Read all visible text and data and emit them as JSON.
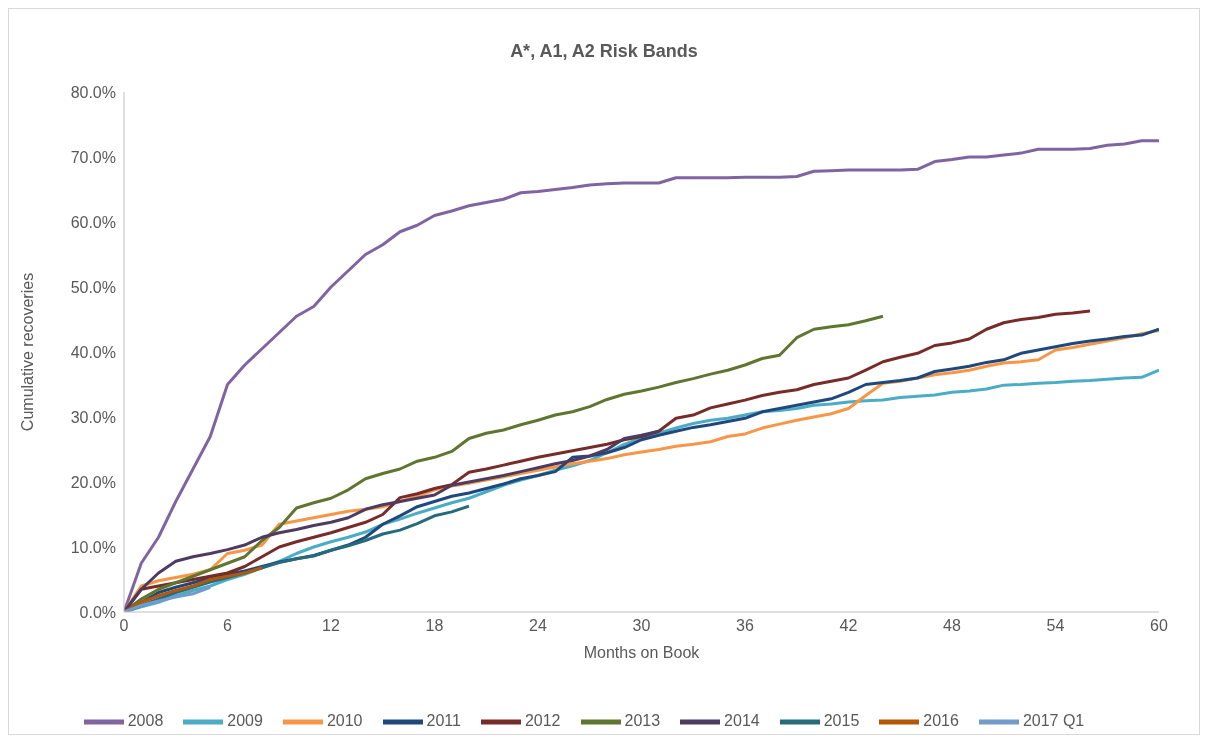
{
  "chart_data": {
    "type": "line",
    "title": "A*, A1, A2 Risk Bands",
    "xlabel": "Months on Book",
    "ylabel": "Cumulative recoveries",
    "x": [
      0,
      1,
      2,
      3,
      4,
      5,
      6,
      7,
      8,
      9,
      10,
      11,
      12,
      13,
      14,
      15,
      16,
      17,
      18,
      19,
      20,
      21,
      22,
      23,
      24,
      25,
      26,
      27,
      28,
      29,
      30,
      31,
      32,
      33,
      34,
      35,
      36,
      37,
      38,
      39,
      40,
      41,
      42,
      43,
      44,
      45,
      46,
      47,
      48,
      49,
      50,
      51,
      52,
      53,
      54,
      55,
      56,
      57,
      58,
      59,
      60
    ],
    "xlim": [
      0,
      60
    ],
    "xticks": [
      0,
      6,
      12,
      18,
      24,
      30,
      36,
      42,
      48,
      54,
      60
    ],
    "ylim": [
      0,
      80
    ],
    "yticks": [
      {
        "value": 0,
        "label": "0.0%"
      },
      {
        "value": 10,
        "label": "10.0%"
      },
      {
        "value": 20,
        "label": "20.0%"
      },
      {
        "value": 30,
        "label": "30.0%"
      },
      {
        "value": 40,
        "label": "40.0%"
      },
      {
        "value": 50,
        "label": "50.0%"
      },
      {
        "value": 60,
        "label": "60.0%"
      },
      {
        "value": 70,
        "label": "70.0%"
      },
      {
        "value": 80,
        "label": "80.0%"
      }
    ],
    "grid": false,
    "legend": "bottom",
    "series": [
      {
        "name": "2008",
        "color": "#8064a2",
        "values": [
          0,
          7.5,
          11.5,
          17,
          22,
          27,
          35,
          38,
          40.5,
          43,
          45.5,
          47,
          50,
          52.5,
          55,
          56.5,
          58.5,
          59.5,
          61,
          61.7,
          62.5,
          63,
          63.5,
          64.5,
          64.7,
          65,
          65.3,
          65.7,
          65.9,
          66,
          66,
          66,
          66.8,
          66.8,
          66.8,
          66.8,
          66.9,
          66.9,
          66.9,
          67,
          67.8,
          67.9,
          68,
          68,
          68,
          68,
          68.1,
          69.3,
          69.6,
          70,
          70,
          70.3,
          70.6,
          71.2,
          71.2,
          71.2,
          71.3,
          71.8,
          72,
          72.5,
          72.5
        ]
      },
      {
        "name": "2009",
        "color": "#4bacc6",
        "values": [
          0,
          0.8,
          1.5,
          2.5,
          3.3,
          4,
          5,
          5.8,
          6.8,
          7.8,
          9,
          10,
          10.8,
          11.5,
          12.3,
          13.5,
          14.3,
          15.2,
          16,
          16.8,
          17.5,
          18.5,
          19.5,
          20.3,
          21,
          21.8,
          22.5,
          23.3,
          24.5,
          25.8,
          26.8,
          27.5,
          28.3,
          29,
          29.5,
          29.8,
          30.3,
          30.8,
          31,
          31.3,
          31.8,
          32,
          32.3,
          32.5,
          32.6,
          33,
          33.2,
          33.4,
          33.8,
          34,
          34.3,
          34.9,
          35,
          35.2,
          35.3,
          35.5,
          35.6,
          35.8,
          36,
          36.1,
          37.2
        ]
      },
      {
        "name": "2010",
        "color": "#f79646",
        "values": [
          0,
          4,
          4.8,
          5.3,
          5.8,
          6.5,
          9,
          9.5,
          10.3,
          13.5,
          14,
          14.5,
          15,
          15.5,
          15.8,
          16.2,
          17,
          17.8,
          18.8,
          19.4,
          19.8,
          20.3,
          20.8,
          21.3,
          21.8,
          22.3,
          22.8,
          23.2,
          23.6,
          24.2,
          24.6,
          25,
          25.5,
          25.8,
          26.2,
          27,
          27.4,
          28.3,
          28.9,
          29.5,
          30,
          30.5,
          31.3,
          33.3,
          35.2,
          35.5,
          36,
          36.5,
          36.8,
          37.2,
          37.8,
          38.3,
          38.5,
          38.8,
          40.3,
          40.7,
          41.2,
          41.7,
          42.2,
          42.8,
          43.3
        ]
      },
      {
        "name": "2011",
        "color": "#1f497d",
        "values": [
          0,
          1.5,
          3,
          3.8,
          4.5,
          5.2,
          5.8,
          6.3,
          7,
          7.7,
          8.2,
          8.7,
          9.5,
          10.3,
          11.5,
          13.5,
          14.8,
          16.2,
          17,
          17.8,
          18.3,
          19,
          19.7,
          20.5,
          21,
          21.6,
          23.8,
          24,
          24.5,
          25.3,
          26.5,
          27.2,
          27.8,
          28.4,
          28.8,
          29.3,
          29.8,
          30.8,
          31.3,
          31.8,
          32.3,
          32.8,
          33.8,
          35,
          35.3,
          35.6,
          36,
          37,
          37.4,
          37.8,
          38.4,
          38.8,
          39.8,
          40.3,
          40.8,
          41.3,
          41.7,
          42,
          42.4,
          42.6,
          43.5
        ]
      },
      {
        "name": "2012",
        "color": "#772c2a",
        "values": [
          0,
          3.5,
          4,
          4.5,
          5,
          5.5,
          6,
          7,
          8.5,
          10,
          10.8,
          11.5,
          12.2,
          13,
          13.8,
          15,
          17.6,
          18.2,
          19,
          19.6,
          21.5,
          22,
          22.6,
          23.2,
          23.8,
          24.3,
          24.8,
          25.3,
          25.8,
          26.5,
          27,
          27.8,
          29.8,
          30.3,
          31.4,
          32,
          32.6,
          33.3,
          33.8,
          34.2,
          35,
          35.5,
          36,
          37.2,
          38.5,
          39.2,
          39.8,
          41,
          41.4,
          42,
          43.5,
          44.5,
          45,
          45.3,
          45.8,
          46,
          46.3,
          null,
          null,
          null,
          null
        ]
      },
      {
        "name": "2013",
        "color": "#5f7530",
        "values": [
          0,
          2,
          3.5,
          4.5,
          5.5,
          6.5,
          7.5,
          8.5,
          11,
          13,
          16,
          16.8,
          17.5,
          18.8,
          20.5,
          21.3,
          22,
          23.2,
          23.8,
          24.7,
          26.7,
          27.5,
          28,
          28.8,
          29.5,
          30.3,
          30.8,
          31.6,
          32.7,
          33.5,
          34,
          34.6,
          35.3,
          35.9,
          36.6,
          37.2,
          38,
          39,
          39.5,
          42.2,
          43.5,
          43.9,
          44.2,
          44.8,
          45.5,
          null,
          null,
          null,
          null,
          null,
          null,
          null,
          null,
          null,
          null,
          null,
          null,
          null,
          null,
          null,
          null
        ]
      },
      {
        "name": "2014",
        "color": "#4d3b62",
        "values": [
          0,
          3.5,
          6,
          7.8,
          8.5,
          9,
          9.6,
          10.3,
          11.5,
          12.2,
          12.7,
          13.3,
          13.8,
          14.5,
          15.8,
          16.5,
          17,
          17.5,
          18,
          19.5,
          20,
          20.5,
          21,
          21.6,
          22.2,
          22.8,
          23.3,
          24,
          25,
          26.7,
          27.2,
          27.8,
          null,
          null,
          null,
          null,
          null,
          null,
          null,
          null,
          null,
          null,
          null,
          null,
          null,
          null,
          null,
          null,
          null,
          null,
          null,
          null,
          null,
          null,
          null,
          null,
          null,
          null,
          null,
          null,
          null
        ]
      },
      {
        "name": "2015",
        "color": "#276a7c",
        "values": [
          0,
          1,
          2,
          3,
          3.8,
          4.6,
          5.3,
          6,
          6.8,
          7.6,
          8.2,
          8.6,
          9.5,
          10.2,
          11,
          12,
          12.6,
          13.6,
          14.8,
          15.4,
          16.3,
          null,
          null,
          null,
          null,
          null,
          null,
          null,
          null,
          null,
          null,
          null,
          null,
          null,
          null,
          null,
          null,
          null,
          null,
          null,
          null,
          null,
          null,
          null,
          null,
          null,
          null,
          null,
          null,
          null,
          null,
          null,
          null,
          null,
          null,
          null,
          null,
          null,
          null,
          null,
          null
        ]
      },
      {
        "name": "2016",
        "color": "#b65708",
        "values": [
          0,
          1.5,
          2.5,
          3.3,
          4,
          5,
          5.5,
          6,
          6.8,
          null,
          null,
          null,
          null,
          null,
          null,
          null,
          null,
          null,
          null,
          null,
          null,
          null,
          null,
          null,
          null,
          null,
          null,
          null,
          null,
          null,
          null,
          null,
          null,
          null,
          null,
          null,
          null,
          null,
          null,
          null,
          null,
          null,
          null,
          null,
          null,
          null,
          null,
          null,
          null,
          null,
          null,
          null,
          null,
          null,
          null,
          null,
          null,
          null,
          null,
          null,
          null
        ]
      },
      {
        "name": "2017 Q1",
        "color": "#729aca",
        "values": [
          0,
          1,
          1.7,
          2.3,
          2.8,
          3.8,
          null,
          null,
          null,
          null,
          null,
          null,
          null,
          null,
          null,
          null,
          null,
          null,
          null,
          null,
          null,
          null,
          null,
          null,
          null,
          null,
          null,
          null,
          null,
          null,
          null,
          null,
          null,
          null,
          null,
          null,
          null,
          null,
          null,
          null,
          null,
          null,
          null,
          null,
          null,
          null,
          null,
          null,
          null,
          null,
          null,
          null,
          null,
          null,
          null,
          null,
          null,
          null,
          null,
          null,
          null
        ]
      }
    ]
  }
}
